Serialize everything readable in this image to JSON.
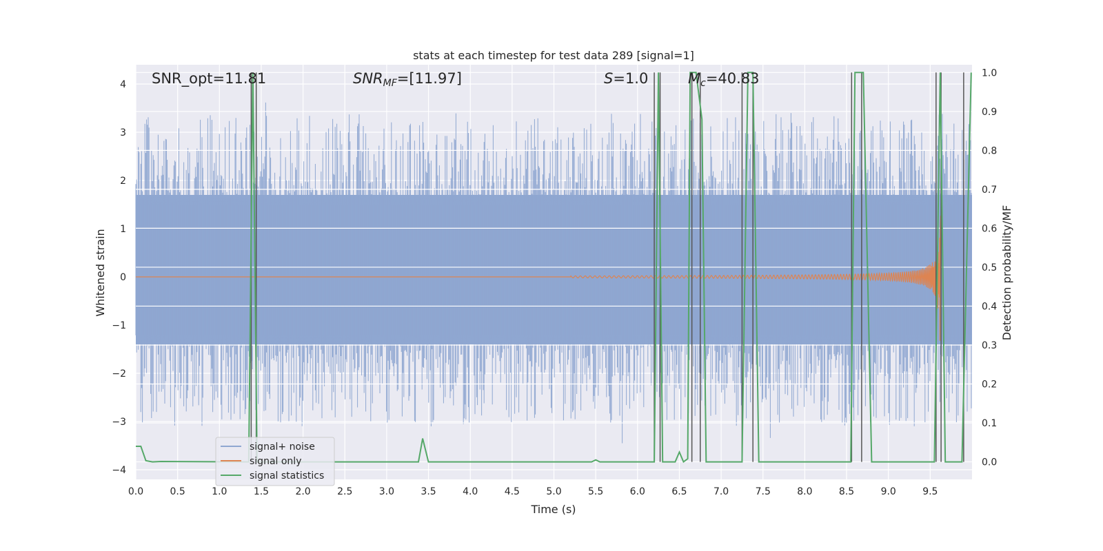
{
  "chart_data": {
    "type": "line",
    "title": "stats at each timestep for test data 289 [signal=1]",
    "xlabel": "Time (s)",
    "ylabel_left": "Whitened strain",
    "ylabel_right": "Detection probability/MF",
    "xlim": [
      0.0,
      10.0
    ],
    "ylim_left": [
      -4.2,
      4.4
    ],
    "ylim_right": [
      -0.045,
      1.02
    ],
    "x_ticks": [
      "0.0",
      "0.5",
      "1.0",
      "1.5",
      "2.0",
      "2.5",
      "3.0",
      "3.5",
      "4.0",
      "4.5",
      "5.0",
      "5.5",
      "6.0",
      "6.5",
      "7.0",
      "7.5",
      "8.0",
      "8.5",
      "9.0",
      "9.5"
    ],
    "y_ticks_left": [
      "−4",
      "−3",
      "−2",
      "−1",
      "0",
      "1",
      "2",
      "3",
      "4"
    ],
    "y_ticks_right": [
      "0.0",
      "0.1",
      "0.2",
      "0.3",
      "0.4",
      "0.5",
      "0.6",
      "0.7",
      "0.8",
      "0.9",
      "1.0"
    ],
    "grid": true,
    "legend_position": "lower-left",
    "annotations": {
      "snr_opt": "SNR_opt=11.81",
      "snr_mf_main": "SNR",
      "snr_mf_sub": "MF",
      "snr_mf_value": "=[11.97]",
      "s_main": "S",
      "s_value": "=1.0",
      "mc_main": "M",
      "mc_sub": "c",
      "mc_value": "=40.83"
    },
    "series": [
      {
        "name": "signal+ noise",
        "color": "#8fa7d1",
        "envelope_upper": 1.7,
        "envelope_lower": -1.4,
        "peak_max": 3.8,
        "peak_min": -3.5
      },
      {
        "name": "signal only",
        "color": "#dd8452",
        "chirp_start": 5.2,
        "merger": 9.62,
        "peak_amplitude": 1.4
      },
      {
        "name": "signal statistics",
        "color": "#55a868",
        "x": [
          0.0,
          0.06,
          0.12,
          0.2,
          0.3,
          1.35,
          1.4,
          1.45,
          1.5,
          3.38,
          3.43,
          3.5,
          5.45,
          5.5,
          5.55,
          6.2,
          6.25,
          6.3,
          6.45,
          6.5,
          6.55,
          6.6,
          6.63,
          6.7,
          6.77,
          6.82,
          6.88,
          7.25,
          7.32,
          7.38,
          7.45,
          8.55,
          8.6,
          8.7,
          8.8,
          9.55,
          9.62,
          9.68,
          9.88,
          9.99
        ],
        "y": [
          0.04,
          0.04,
          0.003,
          0.0,
          0.001,
          0.0,
          1.0,
          0.0,
          0.0,
          0.0,
          0.06,
          0.0,
          0.0,
          0.005,
          0.0,
          0.0,
          1.0,
          0.0,
          0.0,
          0.025,
          0.0,
          0.008,
          1.0,
          1.0,
          0.88,
          0.0,
          0.0,
          0.0,
          1.0,
          1.0,
          0.0,
          0.0,
          1.0,
          1.0,
          0.0,
          0.0,
          1.0,
          0.0,
          0.0,
          1.0
        ]
      }
    ],
    "detection_markers_x": [
      1.38,
      1.44,
      6.2,
      6.27,
      6.65,
      6.75,
      7.25,
      7.38,
      8.56,
      8.68,
      9.57,
      9.63,
      9.9
    ]
  }
}
